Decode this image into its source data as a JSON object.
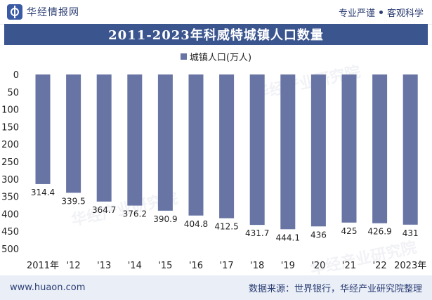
{
  "header": {
    "brand_name": "华经情报网",
    "tagline_left": "专业严谨",
    "tagline_right": "客观科学"
  },
  "title": "2011-2023年科威特城镇人口数量",
  "legend_label": "城镇人口(万人)",
  "footer": {
    "url": "www.huaon.com",
    "source": "数据来源：世界银行，华经产业研究院整理"
  },
  "watermark": "华经产业研究院",
  "colors": {
    "bar": "#6874a4",
    "title_bg": "#3b558f",
    "footer_bg": "#e9eef7",
    "text_dark": "#2c3e73"
  },
  "chart_data": {
    "type": "bar",
    "categories": [
      "2011年",
      "'12",
      "'13",
      "'14",
      "'15",
      "'16",
      "'17",
      "'18",
      "'19",
      "'20",
      "'21",
      "'22",
      "2023年"
    ],
    "series": [
      {
        "name": "城镇人口(万人)",
        "values": [
          314.4,
          339.5,
          364.7,
          376.2,
          390.9,
          404.8,
          412.5,
          431.7,
          444.1,
          436,
          425,
          426.9,
          431
        ]
      }
    ],
    "value_labels": [
      "314.4",
      "339.5",
      "364.7",
      "376.2",
      "390.9",
      "404.8",
      "412.5",
      "431.7",
      "444.1",
      "436",
      "425",
      "426.9",
      "431"
    ],
    "y_axis": {
      "min": 0,
      "max": 500,
      "inverted": true,
      "ticks": [
        "0",
        "50",
        "100",
        "150",
        "200",
        "250",
        "300",
        "350",
        "400",
        "450",
        "500"
      ]
    },
    "grid": false,
    "legend_position": "top"
  }
}
